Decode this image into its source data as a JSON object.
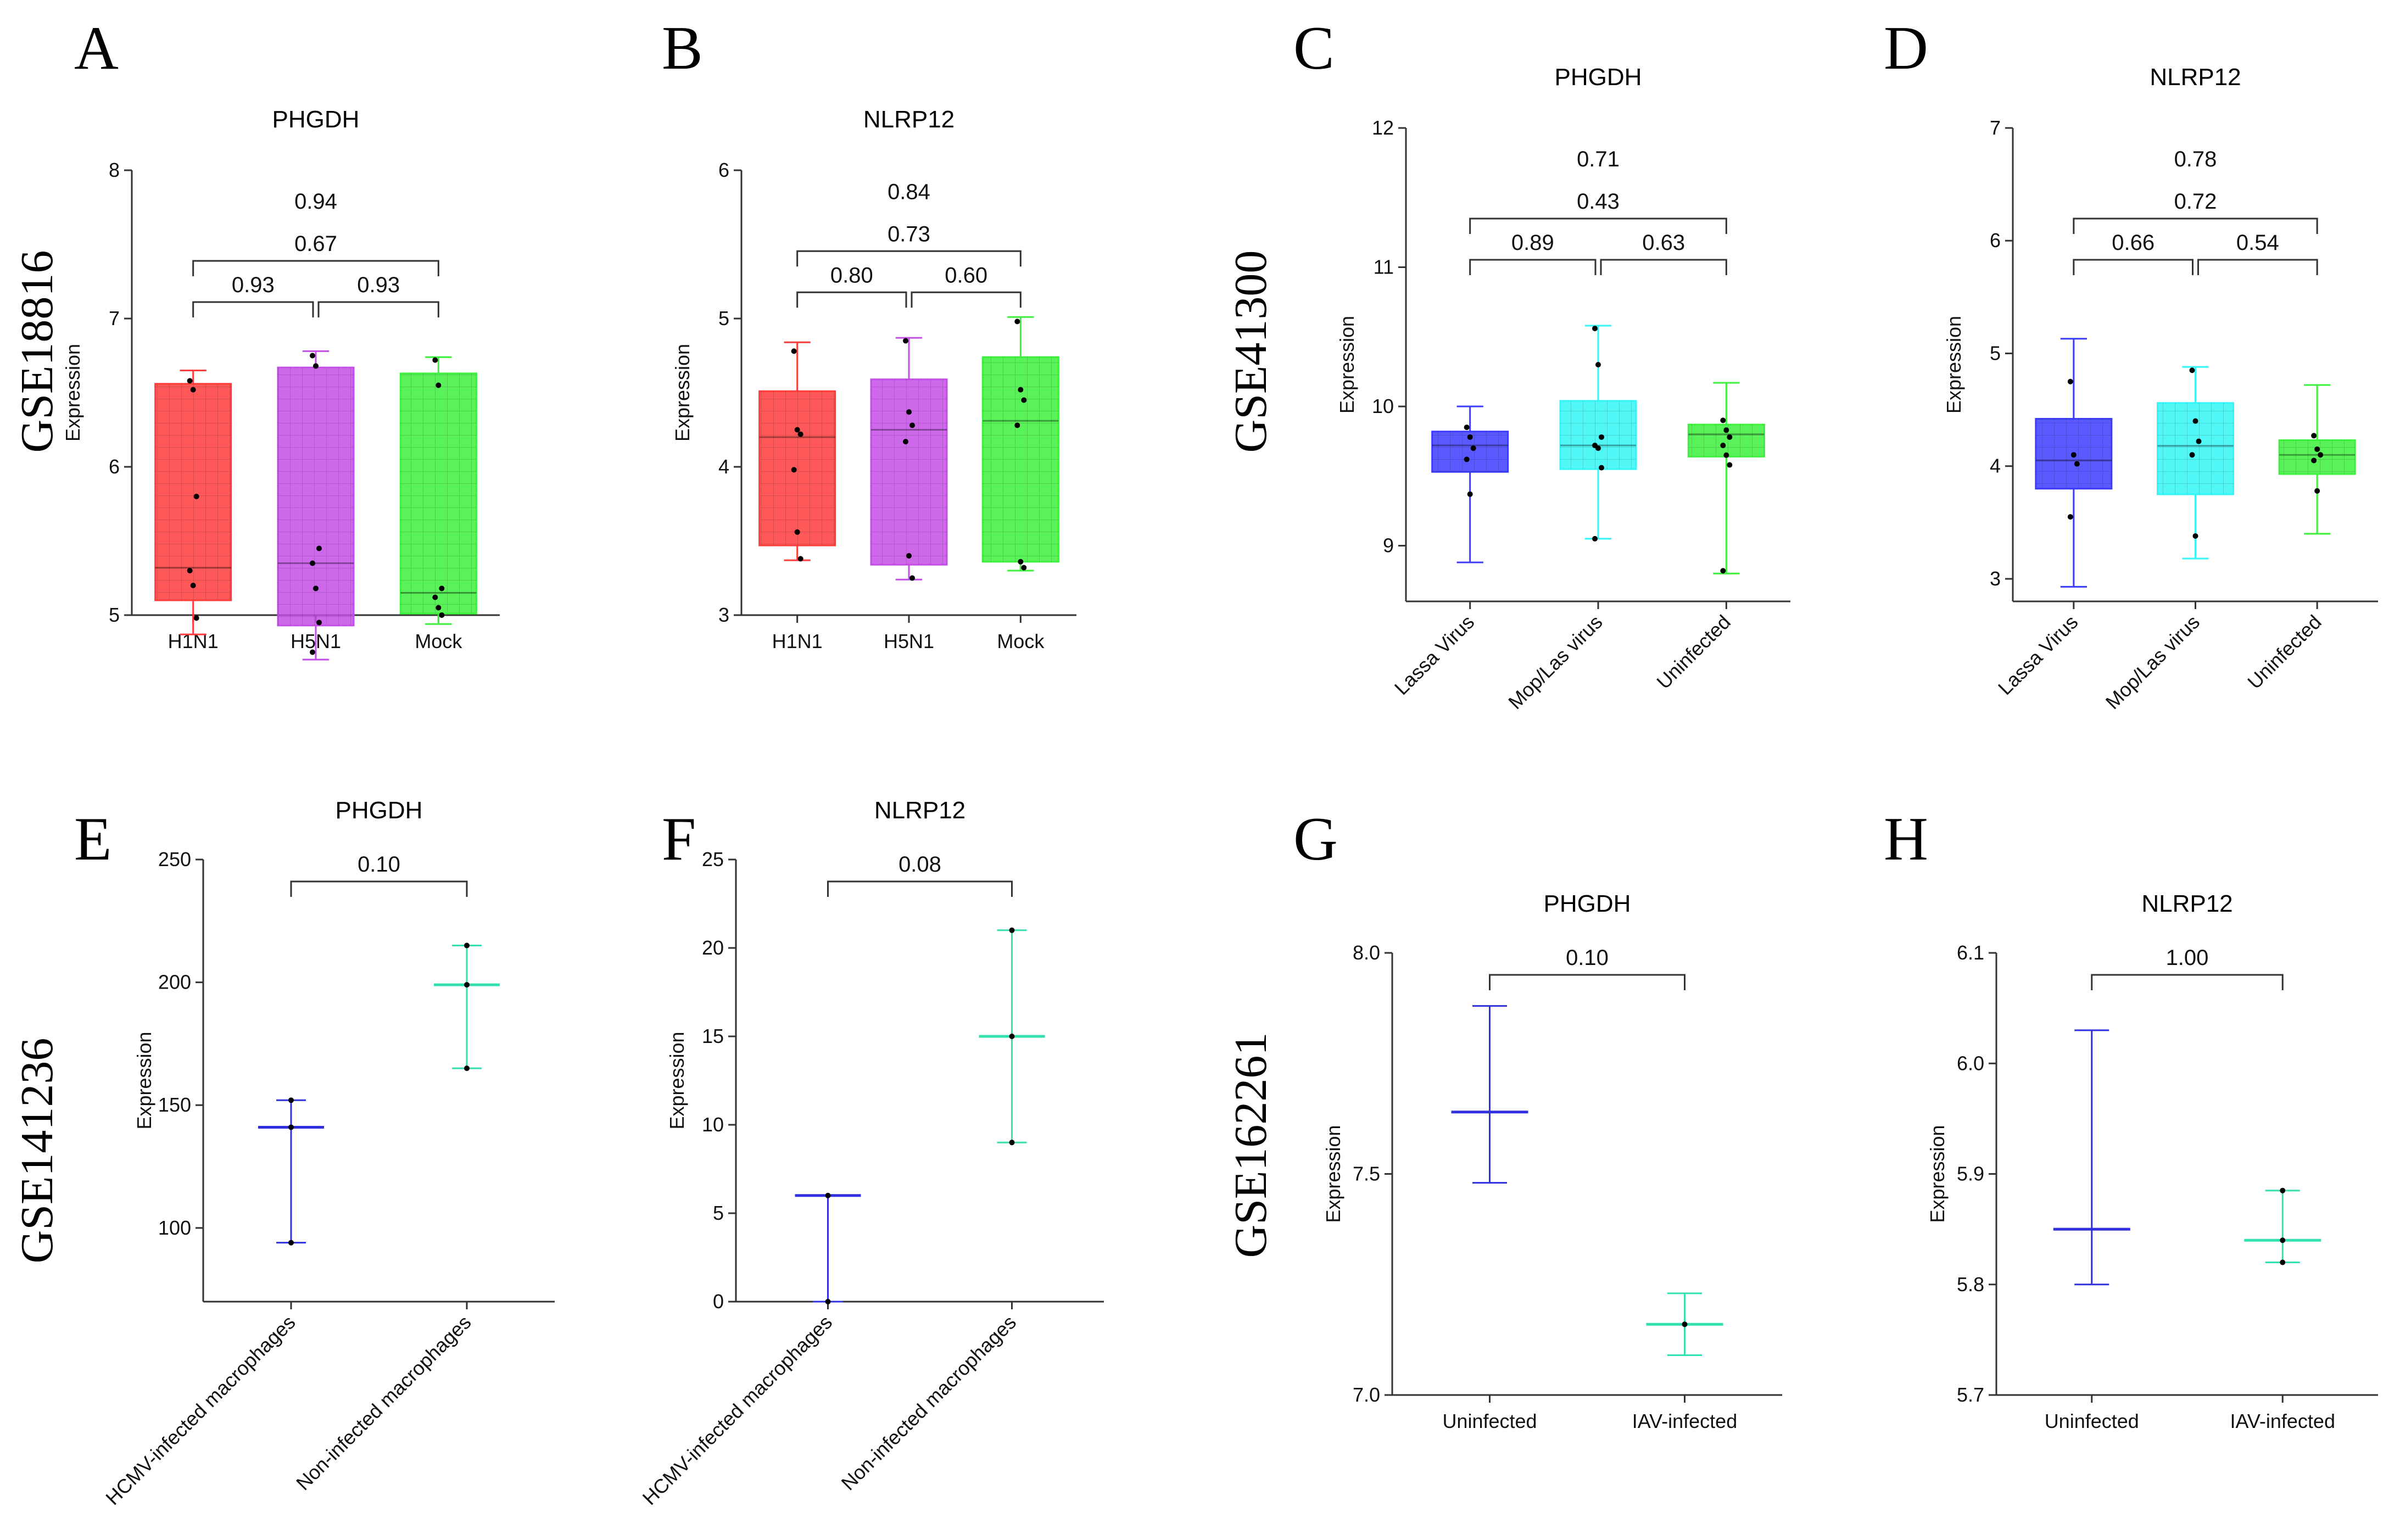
{
  "panels": [
    {
      "letter": "A",
      "dataset": "GSE18816"
    },
    {
      "letter": "B",
      "dataset": ""
    },
    {
      "letter": "C",
      "dataset": "GSE41300"
    },
    {
      "letter": "D",
      "dataset": ""
    },
    {
      "letter": "E",
      "dataset": "GSE141236"
    },
    {
      "letter": "F",
      "dataset": ""
    },
    {
      "letter": "G",
      "dataset": "GSE162261"
    },
    {
      "letter": "H",
      "dataset": ""
    }
  ],
  "chart_data": [
    {
      "panel": "A",
      "type": "box",
      "title": "PHGDH",
      "ylabel": "Expression",
      "xlabel": "",
      "ylim": [
        5,
        8
      ],
      "yticks": [
        5,
        6,
        7,
        8
      ],
      "rotate_x": false,
      "categories": [
        "H1N1",
        "H5N1",
        "Mock"
      ],
      "colors": [
        "#ff3b3b",
        "#c44de8",
        "#3cf03c"
      ],
      "boxes": [
        {
          "min": 4.87,
          "q1": 5.1,
          "median": 5.32,
          "q3": 6.56,
          "max": 6.65,
          "points": [
            6.58,
            6.52,
            5.8,
            5.3,
            5.2,
            4.98
          ]
        },
        {
          "min": 4.7,
          "q1": 4.93,
          "median": 5.35,
          "q3": 6.67,
          "max": 6.78,
          "points": [
            6.75,
            6.68,
            5.45,
            5.35,
            5.18,
            4.95,
            4.75
          ]
        },
        {
          "min": 4.94,
          "q1": 5.01,
          "median": 5.15,
          "q3": 6.63,
          "max": 6.74,
          "points": [
            6.72,
            6.55,
            5.18,
            5.12,
            5.05,
            5.0
          ]
        }
      ],
      "comparisons": [
        {
          "from": 0,
          "to": 1,
          "label": "0.93"
        },
        {
          "from": 1,
          "to": 2,
          "label": "0.93"
        },
        {
          "from": 0,
          "to": 2,
          "label": "0.67"
        }
      ],
      "overall": "0.94"
    },
    {
      "panel": "B",
      "type": "box",
      "title": "NLRP12",
      "ylabel": "Expression",
      "xlabel": "",
      "ylim": [
        3,
        6
      ],
      "yticks": [
        3,
        4,
        5,
        6
      ],
      "rotate_x": false,
      "categories": [
        "H1N1",
        "H5N1",
        "Mock"
      ],
      "colors": [
        "#ff3b3b",
        "#c44de8",
        "#3cf03c"
      ],
      "boxes": [
        {
          "min": 3.37,
          "q1": 3.47,
          "median": 4.2,
          "q3": 4.51,
          "max": 4.84,
          "points": [
            4.78,
            4.25,
            4.22,
            3.98,
            3.56,
            3.38
          ]
        },
        {
          "min": 3.24,
          "q1": 3.34,
          "median": 4.25,
          "q3": 4.59,
          "max": 4.87,
          "points": [
            4.85,
            4.37,
            4.28,
            4.17,
            3.4,
            3.25
          ]
        },
        {
          "min": 3.3,
          "q1": 3.36,
          "median": 4.31,
          "q3": 4.74,
          "max": 5.01,
          "points": [
            4.98,
            4.52,
            4.45,
            4.28,
            3.36,
            3.32
          ]
        }
      ],
      "comparisons": [
        {
          "from": 0,
          "to": 1,
          "label": "0.80"
        },
        {
          "from": 1,
          "to": 2,
          "label": "0.60"
        },
        {
          "from": 0,
          "to": 2,
          "label": "0.73"
        }
      ],
      "overall": "0.84"
    },
    {
      "panel": "C",
      "type": "box",
      "title": "PHGDH",
      "ylabel": "Expression",
      "xlabel": "",
      "ylim": [
        8.6,
        12
      ],
      "yticks": [
        9,
        10,
        11,
        12
      ],
      "rotate_x": true,
      "categories": [
        "Lassa Virus",
        "Mop/Las virus",
        "Uninfected"
      ],
      "colors": [
        "#3c3cff",
        "#33f5f5",
        "#3cf03c"
      ],
      "boxes": [
        {
          "min": 8.88,
          "q1": 9.53,
          "median": 9.72,
          "q3": 9.82,
          "max": 10.0,
          "points": [
            9.85,
            9.78,
            9.7,
            9.62,
            9.37
          ]
        },
        {
          "min": 9.05,
          "q1": 9.55,
          "median": 9.72,
          "q3": 10.04,
          "max": 10.58,
          "points": [
            10.56,
            10.3,
            9.78,
            9.72,
            9.7,
            9.56,
            9.05
          ]
        },
        {
          "min": 8.8,
          "q1": 9.64,
          "median": 9.8,
          "q3": 9.87,
          "max": 10.17,
          "points": [
            9.9,
            9.83,
            9.78,
            9.72,
            9.65,
            9.58,
            8.82
          ]
        }
      ],
      "comparisons": [
        {
          "from": 0,
          "to": 1,
          "label": "0.89"
        },
        {
          "from": 1,
          "to": 2,
          "label": "0.63"
        },
        {
          "from": 0,
          "to": 2,
          "label": "0.43"
        }
      ],
      "overall": "0.71"
    },
    {
      "panel": "D",
      "type": "box",
      "title": "NLRP12",
      "ylabel": "Expression",
      "xlabel": "",
      "ylim": [
        2.8,
        7
      ],
      "yticks": [
        3,
        4,
        5,
        6,
        7
      ],
      "rotate_x": true,
      "categories": [
        "Lassa Virus",
        "Mop/Las virus",
        "Uninfected"
      ],
      "colors": [
        "#3c3cff",
        "#33f5f5",
        "#3cf03c"
      ],
      "boxes": [
        {
          "min": 2.93,
          "q1": 3.8,
          "median": 4.05,
          "q3": 4.42,
          "max": 5.13,
          "points": [
            4.75,
            4.1,
            4.02,
            3.55
          ]
        },
        {
          "min": 3.18,
          "q1": 3.75,
          "median": 4.18,
          "q3": 4.56,
          "max": 4.88,
          "points": [
            4.85,
            4.4,
            4.22,
            4.1,
            3.38
          ]
        },
        {
          "min": 3.4,
          "q1": 3.93,
          "median": 4.1,
          "q3": 4.23,
          "max": 4.72,
          "points": [
            4.27,
            4.15,
            4.1,
            4.05,
            3.78
          ]
        }
      ],
      "comparisons": [
        {
          "from": 0,
          "to": 1,
          "label": "0.66"
        },
        {
          "from": 1,
          "to": 2,
          "label": "0.54"
        },
        {
          "from": 0,
          "to": 2,
          "label": "0.72"
        }
      ],
      "overall": "0.78"
    },
    {
      "panel": "E",
      "type": "errorbar",
      "title": "PHGDH",
      "ylabel": "Expression",
      "xlabel": "",
      "ylim": [
        70,
        250
      ],
      "yticks": [
        100,
        150,
        200,
        250
      ],
      "rotate_x": true,
      "categories": [
        "HCMV-infected macrophages",
        "Non-infected macrophages"
      ],
      "colors": [
        "#3030e0",
        "#33e0b0"
      ],
      "groups": [
        {
          "center": 141,
          "low": 94,
          "high": 152,
          "points": [
            152,
            141,
            94
          ]
        },
        {
          "center": 199,
          "low": 165,
          "high": 215,
          "points": [
            215,
            199,
            165
          ]
        }
      ],
      "comparisons": [
        {
          "from": 0,
          "to": 1,
          "label": "0.10"
        }
      ]
    },
    {
      "panel": "F",
      "type": "errorbar",
      "title": "NLRP12",
      "ylabel": "Expression",
      "xlabel": "",
      "ylim": [
        0,
        25
      ],
      "yticks": [
        0,
        5,
        10,
        15,
        20,
        25
      ],
      "rotate_x": true,
      "categories": [
        "HCMV-infected macrophages",
        "Non-infected macrophages"
      ],
      "colors": [
        "#3030e0",
        "#33e0b0"
      ],
      "groups": [
        {
          "center": 6,
          "low": 0,
          "high": 6,
          "points": [
            6,
            0
          ]
        },
        {
          "center": 15,
          "low": 9,
          "high": 21,
          "points": [
            21,
            15,
            9
          ]
        }
      ],
      "comparisons": [
        {
          "from": 0,
          "to": 1,
          "label": "0.08"
        }
      ]
    },
    {
      "panel": "G",
      "type": "errorbar",
      "title": "PHGDH",
      "ylabel": "Expression",
      "xlabel": "",
      "ylim": [
        7.0,
        8.0
      ],
      "yticks": [
        7.0,
        7.5,
        8.0
      ],
      "decimals": 1,
      "rotate_x": false,
      "categories": [
        "Uninfected",
        "IAV-infected"
      ],
      "colors": [
        "#3030e0",
        "#33e0b0"
      ],
      "groups": [
        {
          "center": 7.64,
          "low": 7.48,
          "high": 7.88,
          "points": []
        },
        {
          "center": 7.16,
          "low": 7.09,
          "high": 7.23,
          "points": [
            7.16
          ]
        }
      ],
      "comparisons": [
        {
          "from": 0,
          "to": 1,
          "label": "0.10"
        }
      ]
    },
    {
      "panel": "H",
      "type": "errorbar",
      "title": "NLRP12",
      "ylabel": "Expression",
      "xlabel": "",
      "ylim": [
        5.7,
        6.1
      ],
      "yticks": [
        5.7,
        5.8,
        5.9,
        6.0,
        6.1
      ],
      "decimals": 1,
      "rotate_x": false,
      "categories": [
        "Uninfected",
        "IAV-infected"
      ],
      "colors": [
        "#3030e0",
        "#33e0b0"
      ],
      "groups": [
        {
          "center": 5.85,
          "low": 5.8,
          "high": 6.03,
          "points": []
        },
        {
          "center": 5.84,
          "low": 5.82,
          "high": 5.885,
          "points": [
            5.885,
            5.84,
            5.82
          ]
        }
      ],
      "comparisons": [
        {
          "from": 0,
          "to": 1,
          "label": "1.00"
        }
      ]
    }
  ]
}
